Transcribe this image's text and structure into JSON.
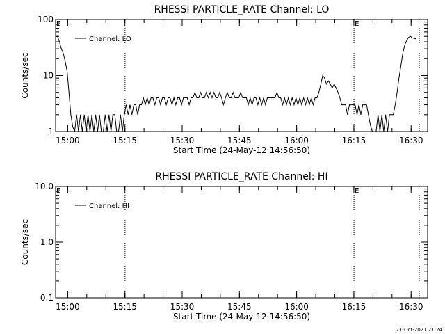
{
  "chart_data": [
    {
      "type": "line",
      "title": "RHESSI PARTICLE_RATE Channel: LO",
      "xlabel": "Start Time (24-May-12 14:56:50)",
      "ylabel": "Counts/sec",
      "x_unit": "minutes after 14:56:50",
      "xlim": [
        0,
        97.5
      ],
      "ylim": [
        1,
        100
      ],
      "y_scale": "log",
      "x_ticks": [
        {
          "value": 3.17,
          "label": "15:00"
        },
        {
          "value": 18.17,
          "label": "15:15"
        },
        {
          "value": 33.17,
          "label": "15:30"
        },
        {
          "value": 48.17,
          "label": "15:45"
        },
        {
          "value": 63.17,
          "label": "16:00"
        },
        {
          "value": 78.17,
          "label": "16:15"
        },
        {
          "value": 93.17,
          "label": "16:30"
        }
      ],
      "y_ticks": [
        {
          "value": 1,
          "label": "1"
        },
        {
          "value": 10,
          "label": "10"
        },
        {
          "value": 100,
          "label": "100"
        }
      ],
      "event_lines": [
        {
          "x": 18.2,
          "label": ""
        },
        {
          "x": 78.2,
          "label": "E"
        },
        {
          "x": 95.3,
          "label": ""
        }
      ],
      "corner_label": "E",
      "legend": {
        "position": "top-left",
        "entries": [
          "Channel: LO"
        ]
      },
      "series": [
        {
          "name": "Channel: LO",
          "points": [
            [
              0.0,
              50
            ],
            [
              0.5,
              50
            ],
            [
              1.0,
              40
            ],
            [
              1.5,
              30
            ],
            [
              2.0,
              25
            ],
            [
              2.5,
              18
            ],
            [
              3.0,
              12
            ],
            [
              3.5,
              5
            ],
            [
              4.0,
              2
            ],
            [
              4.5,
              1.2
            ],
            [
              5.0,
              1
            ],
            [
              5.5,
              2
            ],
            [
              6.0,
              1
            ],
            [
              6.5,
              2
            ],
            [
              7.0,
              1
            ],
            [
              7.5,
              2
            ],
            [
              8.0,
              1
            ],
            [
              8.5,
              2
            ],
            [
              9.0,
              1
            ],
            [
              9.5,
              2
            ],
            [
              10.0,
              1
            ],
            [
              10.5,
              2
            ],
            [
              11.0,
              1
            ],
            [
              11.5,
              2
            ],
            [
              12.0,
              1
            ],
            [
              12.5,
              1
            ],
            [
              13.0,
              2
            ],
            [
              13.5,
              1
            ],
            [
              14.0,
              2
            ],
            [
              14.5,
              1
            ],
            [
              15.0,
              2
            ],
            [
              15.5,
              2
            ],
            [
              16.0,
              1
            ],
            [
              16.5,
              1
            ],
            [
              17.0,
              2
            ],
            [
              17.5,
              1
            ],
            [
              18.0,
              2
            ],
            [
              18.5,
              3
            ],
            [
              19.0,
              2
            ],
            [
              19.5,
              3
            ],
            [
              20.0,
              2
            ],
            [
              20.5,
              3
            ],
            [
              21.0,
              3
            ],
            [
              21.5,
              2
            ],
            [
              22.0,
              3
            ],
            [
              22.5,
              3
            ],
            [
              23.0,
              4
            ],
            [
              23.5,
              3
            ],
            [
              24.0,
              4
            ],
            [
              24.5,
              3
            ],
            [
              25.0,
              4
            ],
            [
              25.5,
              4
            ],
            [
              26.0,
              3
            ],
            [
              26.5,
              4
            ],
            [
              27.0,
              4
            ],
            [
              27.5,
              3
            ],
            [
              28.0,
              4
            ],
            [
              28.5,
              4
            ],
            [
              29.0,
              3
            ],
            [
              29.5,
              4
            ],
            [
              30.0,
              4
            ],
            [
              30.5,
              3
            ],
            [
              31.0,
              4
            ],
            [
              31.5,
              3
            ],
            [
              32.0,
              4
            ],
            [
              32.5,
              4
            ],
            [
              33.0,
              3
            ],
            [
              33.5,
              4
            ],
            [
              34.0,
              4
            ],
            [
              34.5,
              4
            ],
            [
              35.0,
              3
            ],
            [
              35.5,
              4
            ],
            [
              36.0,
              4
            ],
            [
              36.5,
              5
            ],
            [
              37.0,
              4
            ],
            [
              37.5,
              4
            ],
            [
              38.0,
              5
            ],
            [
              38.5,
              4
            ],
            [
              39.0,
              4
            ],
            [
              39.5,
              5
            ],
            [
              40.0,
              4
            ],
            [
              40.5,
              5
            ],
            [
              41.0,
              4
            ],
            [
              41.5,
              5
            ],
            [
              42.0,
              4
            ],
            [
              42.5,
              4
            ],
            [
              43.0,
              5
            ],
            [
              43.5,
              4
            ],
            [
              44.0,
              3
            ],
            [
              44.5,
              4
            ],
            [
              45.0,
              5
            ],
            [
              45.5,
              4
            ],
            [
              46.0,
              4
            ],
            [
              46.5,
              5
            ],
            [
              47.0,
              4
            ],
            [
              47.5,
              4
            ],
            [
              48.0,
              4
            ],
            [
              48.5,
              5
            ],
            [
              49.0,
              4
            ],
            [
              49.5,
              4
            ],
            [
              50.0,
              4
            ],
            [
              50.5,
              3
            ],
            [
              51.0,
              4
            ],
            [
              51.5,
              3
            ],
            [
              52.0,
              4
            ],
            [
              52.5,
              4
            ],
            [
              53.0,
              3
            ],
            [
              53.5,
              4
            ],
            [
              54.0,
              3
            ],
            [
              54.5,
              4
            ],
            [
              55.0,
              3
            ],
            [
              55.5,
              4
            ],
            [
              56.0,
              4
            ],
            [
              56.5,
              4
            ],
            [
              57.0,
              4
            ],
            [
              57.5,
              4
            ],
            [
              58.0,
              5
            ],
            [
              58.5,
              4
            ],
            [
              59.0,
              4
            ],
            [
              59.5,
              3
            ],
            [
              60.0,
              4
            ],
            [
              60.5,
              3
            ],
            [
              61.0,
              4
            ],
            [
              61.5,
              3
            ],
            [
              62.0,
              4
            ],
            [
              62.5,
              3
            ],
            [
              63.0,
              4
            ],
            [
              63.5,
              3
            ],
            [
              64.0,
              4
            ],
            [
              64.5,
              3
            ],
            [
              65.0,
              4
            ],
            [
              65.5,
              3
            ],
            [
              66.0,
              4
            ],
            [
              66.5,
              3
            ],
            [
              67.0,
              4
            ],
            [
              67.5,
              3
            ],
            [
              68.0,
              4
            ],
            [
              68.5,
              4
            ],
            [
              69.0,
              5
            ],
            [
              69.5,
              7
            ],
            [
              70.0,
              10
            ],
            [
              70.5,
              9
            ],
            [
              71.0,
              7
            ],
            [
              71.5,
              8
            ],
            [
              72.0,
              7
            ],
            [
              72.5,
              6
            ],
            [
              73.0,
              7
            ],
            [
              73.5,
              6
            ],
            [
              74.0,
              5
            ],
            [
              74.5,
              4
            ],
            [
              75.0,
              3
            ],
            [
              75.5,
              3
            ],
            [
              76.0,
              3
            ],
            [
              76.5,
              2
            ],
            [
              77.0,
              3
            ],
            [
              77.5,
              3
            ],
            [
              78.0,
              3
            ],
            [
              78.5,
              3
            ],
            [
              79.0,
              2
            ],
            [
              79.5,
              3
            ],
            [
              80.0,
              2
            ],
            [
              80.5,
              3
            ],
            [
              81.0,
              3
            ],
            [
              81.5,
              3
            ],
            [
              82.0,
              2
            ],
            [
              82.5,
              1.3
            ],
            [
              83.0,
              1
            ],
            [
              83.5,
              1
            ],
            [
              84.0,
              1
            ],
            [
              84.5,
              2
            ],
            [
              85.0,
              1
            ],
            [
              85.5,
              2
            ],
            [
              86.0,
              1
            ],
            [
              86.5,
              2
            ],
            [
              87.0,
              1
            ],
            [
              87.5,
              2
            ],
            [
              88.0,
              2
            ],
            [
              88.5,
              2
            ],
            [
              89.0,
              3
            ],
            [
              89.5,
              5
            ],
            [
              90.0,
              9
            ],
            [
              90.5,
              15
            ],
            [
              91.0,
              25
            ],
            [
              91.5,
              35
            ],
            [
              92.0,
              42
            ],
            [
              92.5,
              48
            ],
            [
              93.0,
              50
            ],
            [
              93.5,
              47
            ],
            [
              94.0,
              46
            ],
            [
              94.5,
              45
            ]
          ]
        }
      ]
    },
    {
      "type": "line",
      "title": "RHESSI PARTICLE_RATE Channel: HI",
      "xlabel": "Start Time (24-May-12 14:56:50)",
      "ylabel": "Counts/sec",
      "x_unit": "minutes after 14:56:50",
      "xlim": [
        0,
        97.5
      ],
      "ylim": [
        0.1,
        10
      ],
      "y_scale": "log",
      "x_ticks": [
        {
          "value": 3.17,
          "label": "15:00"
        },
        {
          "value": 18.17,
          "label": "15:15"
        },
        {
          "value": 33.17,
          "label": "15:30"
        },
        {
          "value": 48.17,
          "label": "15:45"
        },
        {
          "value": 63.17,
          "label": "16:00"
        },
        {
          "value": 78.17,
          "label": "16:15"
        },
        {
          "value": 93.17,
          "label": "16:30"
        }
      ],
      "y_ticks": [
        {
          "value": 0.1,
          "label": "0.1"
        },
        {
          "value": 1,
          "label": "1.0"
        },
        {
          "value": 10,
          "label": "10.0"
        }
      ],
      "event_lines": [
        {
          "x": 18.2,
          "label": ""
        },
        {
          "x": 78.2,
          "label": "E"
        },
        {
          "x": 95.3,
          "label": ""
        }
      ],
      "corner_label": "E",
      "legend": {
        "position": "top-left",
        "entries": [
          "Channel: HI"
        ]
      },
      "series": [
        {
          "name": "Channel: HI",
          "points": []
        }
      ]
    }
  ],
  "footer": {
    "timestamp": "21-Oct-2021 21:24"
  }
}
